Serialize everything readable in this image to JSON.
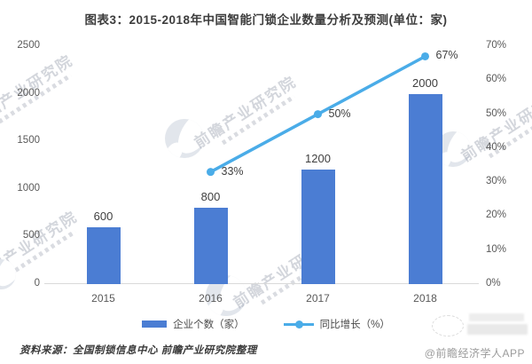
{
  "title": "图表3：2015-2018年中国智能门锁企业数量分析及预测(单位：家)",
  "watermark": {
    "text": "前瞻产业研究院"
  },
  "footer": {
    "source": "资料来源：全国制锁信息中心 前瞻产业研究院整理",
    "credit": "@前瞻经济学人APP"
  },
  "chart_data": {
    "type": "combo_bar_line",
    "categories": [
      "2015",
      "2016",
      "2017",
      "2018"
    ],
    "series": [
      {
        "name": "企业个数（家）",
        "type": "bar",
        "axis": "left",
        "values": [
          600,
          800,
          1200,
          2000
        ],
        "labels": [
          "600",
          "800",
          "1200",
          "2000"
        ],
        "color": "#4b7dd3"
      },
      {
        "name": "同比增长（%）",
        "type": "line",
        "axis": "right",
        "values": [
          null,
          33,
          50,
          67
        ],
        "labels": [
          null,
          "33%",
          "50%",
          "67%"
        ],
        "color": "#4aace8"
      }
    ],
    "left_axis": {
      "min": 0,
      "max": 2500,
      "ticks": [
        "0",
        "500",
        "1000",
        "1500",
        "2000",
        "2500"
      ]
    },
    "right_axis": {
      "min": 0,
      "max": 70,
      "ticks": [
        "0%",
        "10%",
        "20%",
        "30%",
        "40%",
        "50%",
        "60%",
        "70%"
      ]
    },
    "grid": false,
    "legend_position": "bottom"
  }
}
